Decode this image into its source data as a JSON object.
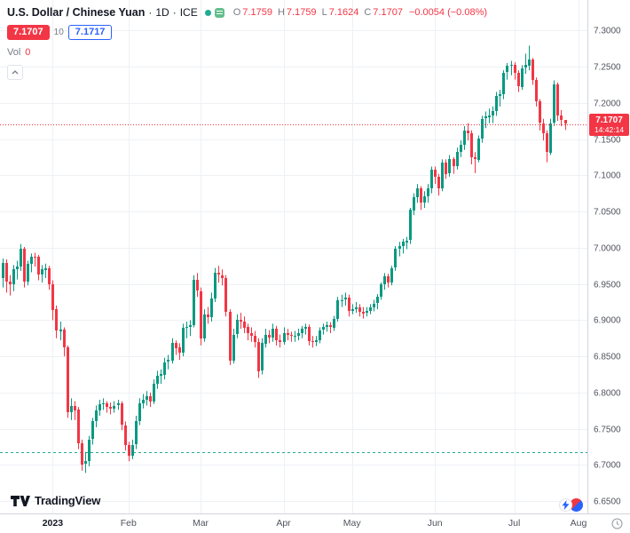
{
  "legend": {
    "title": "U.S. Dollar / Chinese Yuan",
    "separator": "·",
    "timeframe": "1D",
    "exchange": "ICE",
    "ohlc": {
      "o_label": "O",
      "o": "7.1759",
      "h_label": "H",
      "h": "7.1759",
      "l_label": "L",
      "l": "7.1624",
      "c_label": "C",
      "c": "7.1707",
      "change": "−0.0054 (−0.08%)"
    },
    "bid": "7.1707",
    "spread": "10",
    "ask": "7.1717",
    "vol_label": "Vol",
    "vol_value": "0"
  },
  "price_label": {
    "value": "7.1707",
    "countdown": "14:42:14"
  },
  "footer": {
    "logo_text": "TradingView"
  },
  "colors": {
    "up": "#089981",
    "down": "#f23645",
    "accent_blue": "#2962ff",
    "teal": "#22ab94",
    "grid": "#eef1f5"
  },
  "chart_data": {
    "type": "candlestick",
    "title": "U.S. Dollar / Chinese Yuan",
    "timeframe": "1D",
    "exchange": "ICE",
    "up_color": "#089981",
    "down_color": "#f23645",
    "price_range": {
      "top": 7.342,
      "bottom": 6.633
    },
    "y_ticks": [
      7.3,
      7.25,
      7.2,
      7.15,
      7.1,
      7.05,
      7.0,
      6.95,
      6.9,
      6.85,
      6.8,
      6.75,
      6.7,
      6.65
    ],
    "y_tick_labels": [
      "7.3000",
      "7.2500",
      "7.2000",
      "7.1500",
      "7.1000",
      "7.0500",
      "7.0000",
      "6.9500",
      "6.9000",
      "6.8500",
      "6.8000",
      "6.7500",
      "6.7000",
      "6.6500"
    ],
    "time_axis_labels": [
      "2023",
      "Feb",
      "Mar",
      "Apr",
      "May",
      "Jun",
      "Jul",
      "Aug"
    ],
    "last_price_line": {
      "value": 7.1707,
      "color": "#f23645"
    },
    "alert_line": {
      "value": 6.7175,
      "color": "#22ab94"
    },
    "candles": [
      [
        "2022-12-12",
        6.958,
        6.985,
        6.945,
        6.979
      ],
      [
        "2022-12-13",
        6.979,
        6.984,
        6.938,
        6.953
      ],
      [
        "2022-12-14",
        6.953,
        6.962,
        6.934,
        6.949
      ],
      [
        "2022-12-15",
        6.949,
        6.976,
        6.94,
        6.97
      ],
      [
        "2022-12-16",
        6.97,
        6.982,
        6.956,
        6.974
      ],
      [
        "2022-12-19",
        6.974,
        7.005,
        6.968,
        6.998
      ],
      [
        "2022-12-20",
        6.998,
        7.001,
        6.945,
        6.953
      ],
      [
        "2022-12-21",
        6.953,
        6.982,
        6.948,
        6.978
      ],
      [
        "2022-12-22",
        6.978,
        6.992,
        6.966,
        6.988
      ],
      [
        "2022-12-23",
        6.988,
        6.993,
        6.974,
        6.987
      ],
      [
        "2022-12-27",
        6.987,
        6.99,
        6.955,
        6.963
      ],
      [
        "2022-12-28",
        6.963,
        6.976,
        6.952,
        6.97
      ],
      [
        "2022-12-29",
        6.97,
        6.978,
        6.958,
        6.972
      ],
      [
        "2022-12-30",
        6.972,
        6.975,
        6.942,
        6.95
      ],
      [
        "2023-01-03",
        6.95,
        6.955,
        6.9,
        6.915
      ],
      [
        "2023-01-04",
        6.915,
        6.92,
        6.875,
        6.885
      ],
      [
        "2023-01-05",
        6.885,
        6.898,
        6.872,
        6.887
      ],
      [
        "2023-01-06",
        6.887,
        6.89,
        6.85,
        6.862
      ],
      [
        "2023-01-09",
        6.862,
        6.865,
        6.765,
        6.773
      ],
      [
        "2023-01-10",
        6.773,
        6.792,
        6.762,
        6.782
      ],
      [
        "2023-01-11",
        6.782,
        6.788,
        6.762,
        6.776
      ],
      [
        "2023-01-12",
        6.776,
        6.78,
        6.722,
        6.73
      ],
      [
        "2023-01-13",
        6.73,
        6.735,
        6.692,
        6.701
      ],
      [
        "2023-01-16",
        6.701,
        6.718,
        6.689,
        6.705
      ],
      [
        "2023-01-17",
        6.705,
        6.74,
        6.698,
        6.735
      ],
      [
        "2023-01-18",
        6.735,
        6.765,
        6.728,
        6.76
      ],
      [
        "2023-01-19",
        6.76,
        6.782,
        6.752,
        6.775
      ],
      [
        "2023-01-20",
        6.775,
        6.79,
        6.768,
        6.784
      ],
      [
        "2023-01-23",
        6.784,
        6.792,
        6.776,
        6.785
      ],
      [
        "2023-01-24",
        6.785,
        6.788,
        6.772,
        6.78
      ],
      [
        "2023-01-25",
        6.78,
        6.786,
        6.77,
        6.778
      ],
      [
        "2023-01-26",
        6.778,
        6.788,
        6.772,
        6.782
      ],
      [
        "2023-01-27",
        6.782,
        6.79,
        6.776,
        6.785
      ],
      [
        "2023-01-30",
        6.785,
        6.788,
        6.748,
        6.755
      ],
      [
        "2023-01-31",
        6.755,
        6.76,
        6.72,
        6.728
      ],
      [
        "2023-02-01",
        6.728,
        6.732,
        6.705,
        6.713
      ],
      [
        "2023-02-02",
        6.713,
        6.735,
        6.708,
        6.728
      ],
      [
        "2023-02-03",
        6.728,
        6.768,
        6.722,
        6.76
      ],
      [
        "2023-02-06",
        6.76,
        6.792,
        6.755,
        6.785
      ],
      [
        "2023-02-07",
        6.785,
        6.798,
        6.778,
        6.79
      ],
      [
        "2023-02-08",
        6.79,
        6.802,
        6.782,
        6.795
      ],
      [
        "2023-02-09",
        6.795,
        6.8,
        6.78,
        6.788
      ],
      [
        "2023-02-10",
        6.788,
        6.818,
        6.784,
        6.812
      ],
      [
        "2023-02-13",
        6.812,
        6.83,
        6.805,
        6.823
      ],
      [
        "2023-02-14",
        6.823,
        6.832,
        6.812,
        6.825
      ],
      [
        "2023-02-15",
        6.825,
        6.848,
        6.818,
        6.842
      ],
      [
        "2023-02-16",
        6.842,
        6.852,
        6.832,
        6.845
      ],
      [
        "2023-02-17",
        6.845,
        6.875,
        6.84,
        6.869
      ],
      [
        "2023-02-20",
        6.869,
        6.872,
        6.852,
        6.862
      ],
      [
        "2023-02-21",
        6.862,
        6.868,
        6.845,
        6.855
      ],
      [
        "2023-02-22",
        6.855,
        6.895,
        6.85,
        6.889
      ],
      [
        "2023-02-23",
        6.889,
        6.898,
        6.875,
        6.89
      ],
      [
        "2023-02-24",
        6.89,
        6.9,
        6.878,
        6.893
      ],
      [
        "2023-02-27",
        6.893,
        6.962,
        6.89,
        6.955
      ],
      [
        "2023-02-28",
        6.955,
        6.965,
        6.932,
        6.94
      ],
      [
        "2023-03-01",
        6.94,
        6.945,
        6.865,
        6.875
      ],
      [
        "2023-03-02",
        6.875,
        6.915,
        6.87,
        6.908
      ],
      [
        "2023-03-03",
        6.908,
        6.918,
        6.895,
        6.904
      ],
      [
        "2023-03-06",
        6.904,
        6.938,
        6.898,
        6.93
      ],
      [
        "2023-03-07",
        6.93,
        6.972,
        6.925,
        6.965
      ],
      [
        "2023-03-08",
        6.965,
        6.975,
        6.952,
        6.962
      ],
      [
        "2023-03-09",
        6.962,
        6.97,
        6.948,
        6.958
      ],
      [
        "2023-03-10",
        6.958,
        6.962,
        6.905,
        6.912
      ],
      [
        "2023-03-13",
        6.912,
        6.915,
        6.838,
        6.845
      ],
      [
        "2023-03-14",
        6.845,
        6.888,
        6.84,
        6.88
      ],
      [
        "2023-03-15",
        6.88,
        6.908,
        6.875,
        6.9
      ],
      [
        "2023-03-16",
        6.9,
        6.91,
        6.888,
        6.898
      ],
      [
        "2023-03-17",
        6.898,
        6.905,
        6.882,
        6.89
      ],
      [
        "2023-03-20",
        6.89,
        6.895,
        6.872,
        6.882
      ],
      [
        "2023-03-21",
        6.882,
        6.89,
        6.87,
        6.878
      ],
      [
        "2023-03-22",
        6.878,
        6.885,
        6.862,
        6.87
      ],
      [
        "2023-03-23",
        6.87,
        6.875,
        6.82,
        6.83
      ],
      [
        "2023-03-24",
        6.83,
        6.875,
        6.825,
        6.868
      ],
      [
        "2023-03-27",
        6.868,
        6.888,
        6.862,
        6.88
      ],
      [
        "2023-03-28",
        6.88,
        6.886,
        6.868,
        6.876
      ],
      [
        "2023-03-29",
        6.876,
        6.895,
        6.87,
        6.888
      ],
      [
        "2023-03-30",
        6.888,
        6.892,
        6.865,
        6.872
      ],
      [
        "2023-03-31",
        6.872,
        6.88,
        6.862,
        6.87
      ],
      [
        "2023-04-03",
        6.87,
        6.89,
        6.866,
        6.882
      ],
      [
        "2023-04-04",
        6.882,
        6.888,
        6.872,
        6.879
      ],
      [
        "2023-04-05",
        6.879,
        6.884,
        6.87,
        6.878
      ],
      [
        "2023-04-06",
        6.878,
        6.885,
        6.87,
        6.878
      ],
      [
        "2023-04-10",
        6.878,
        6.888,
        6.872,
        6.882
      ],
      [
        "2023-04-11",
        6.882,
        6.892,
        6.875,
        6.888
      ],
      [
        "2023-04-12",
        6.888,
        6.895,
        6.88,
        6.891
      ],
      [
        "2023-04-13",
        6.891,
        6.894,
        6.865,
        6.871
      ],
      [
        "2023-04-14",
        6.871,
        6.878,
        6.862,
        6.87
      ],
      [
        "2023-04-17",
        6.87,
        6.878,
        6.864,
        6.872
      ],
      [
        "2023-04-18",
        6.872,
        6.89,
        6.868,
        6.886
      ],
      [
        "2023-04-19",
        6.886,
        6.895,
        6.88,
        6.89
      ],
      [
        "2023-04-20",
        6.89,
        6.898,
        6.884,
        6.893
      ],
      [
        "2023-04-21",
        6.893,
        6.897,
        6.882,
        6.89
      ],
      [
        "2023-04-24",
        6.89,
        6.906,
        6.885,
        6.902
      ],
      [
        "2023-04-25",
        6.902,
        6.932,
        6.898,
        6.928
      ],
      [
        "2023-04-26",
        6.928,
        6.935,
        6.918,
        6.928
      ],
      [
        "2023-04-27",
        6.928,
        6.938,
        6.92,
        6.931
      ],
      [
        "2023-04-28",
        6.931,
        6.935,
        6.905,
        6.912
      ],
      [
        "2023-05-01",
        6.912,
        6.922,
        6.908,
        6.915
      ],
      [
        "2023-05-02",
        6.915,
        6.925,
        6.91,
        6.918
      ],
      [
        "2023-05-03",
        6.918,
        6.922,
        6.905,
        6.912
      ],
      [
        "2023-05-04",
        6.912,
        6.918,
        6.902,
        6.91
      ],
      [
        "2023-05-05",
        6.91,
        6.918,
        6.905,
        6.913
      ],
      [
        "2023-05-08",
        6.913,
        6.922,
        6.908,
        6.918
      ],
      [
        "2023-05-09",
        6.918,
        6.928,
        6.912,
        6.923
      ],
      [
        "2023-05-10",
        6.923,
        6.936,
        6.915,
        6.932
      ],
      [
        "2023-05-11",
        6.932,
        6.952,
        6.928,
        6.949
      ],
      [
        "2023-05-12",
        6.949,
        6.965,
        6.942,
        6.96
      ],
      [
        "2023-05-15",
        6.96,
        6.964,
        6.945,
        6.952
      ],
      [
        "2023-05-16",
        6.952,
        6.975,
        6.948,
        6.972
      ],
      [
        "2023-05-17",
        6.972,
        7.002,
        6.968,
        6.998
      ],
      [
        "2023-05-18",
        6.998,
        7.008,
        6.988,
        7.002
      ],
      [
        "2023-05-19",
        7.002,
        7.012,
        6.992,
        7.008
      ],
      [
        "2023-05-22",
        7.008,
        7.015,
        6.998,
        7.01
      ],
      [
        "2023-05-23",
        7.01,
        7.055,
        7.005,
        7.052
      ],
      [
        "2023-05-24",
        7.052,
        7.075,
        7.045,
        7.07
      ],
      [
        "2023-05-25",
        7.07,
        7.088,
        7.062,
        7.082
      ],
      [
        "2023-05-26",
        7.082,
        7.085,
        7.052,
        7.062
      ],
      [
        "2023-05-29",
        7.062,
        7.078,
        7.055,
        7.071
      ],
      [
        "2023-05-30",
        7.071,
        7.088,
        7.062,
        7.082
      ],
      [
        "2023-05-31",
        7.082,
        7.112,
        7.075,
        7.108
      ],
      [
        "2023-06-01",
        7.108,
        7.112,
        7.088,
        7.098
      ],
      [
        "2023-06-02",
        7.098,
        7.102,
        7.072,
        7.082
      ],
      [
        "2023-06-05",
        7.082,
        7.122,
        7.078,
        7.118
      ],
      [
        "2023-06-06",
        7.118,
        7.122,
        7.095,
        7.102
      ],
      [
        "2023-06-07",
        7.102,
        7.128,
        7.098,
        7.122
      ],
      [
        "2023-06-08",
        7.122,
        7.125,
        7.102,
        7.112
      ],
      [
        "2023-06-09",
        7.112,
        7.138,
        7.108,
        7.132
      ],
      [
        "2023-06-12",
        7.132,
        7.148,
        7.125,
        7.142
      ],
      [
        "2023-06-13",
        7.142,
        7.168,
        7.135,
        7.162
      ],
      [
        "2023-06-14",
        7.162,
        7.172,
        7.148,
        7.158
      ],
      [
        "2023-06-15",
        7.158,
        7.162,
        7.115,
        7.125
      ],
      [
        "2023-06-16",
        7.125,
        7.132,
        7.103,
        7.122
      ],
      [
        "2023-06-19",
        7.122,
        7.155,
        7.118,
        7.151
      ],
      [
        "2023-06-20",
        7.151,
        7.182,
        7.145,
        7.178
      ],
      [
        "2023-06-21",
        7.178,
        7.188,
        7.165,
        7.181
      ],
      [
        "2023-06-22",
        7.181,
        7.192,
        7.172,
        7.183
      ],
      [
        "2023-06-23",
        7.183,
        7.195,
        7.172,
        7.189
      ],
      [
        "2023-06-26",
        7.189,
        7.215,
        7.182,
        7.21
      ],
      [
        "2023-06-27",
        7.21,
        7.218,
        7.195,
        7.212
      ],
      [
        "2023-06-28",
        7.212,
        7.245,
        7.205,
        7.242
      ],
      [
        "2023-06-29",
        7.242,
        7.255,
        7.232,
        7.251
      ],
      [
        "2023-06-30",
        7.251,
        7.258,
        7.238,
        7.252
      ],
      [
        "2023-07-03",
        7.252,
        7.256,
        7.232,
        7.241
      ],
      [
        "2023-07-04",
        7.241,
        7.245,
        7.215,
        7.222
      ],
      [
        "2023-07-05",
        7.222,
        7.252,
        7.218,
        7.248
      ],
      [
        "2023-07-06",
        7.248,
        7.268,
        7.24,
        7.252
      ],
      [
        "2023-07-07",
        7.252,
        7.279,
        7.245,
        7.26
      ],
      [
        "2023-07-10",
        7.26,
        7.262,
        7.225,
        7.232
      ],
      [
        "2023-07-11",
        7.232,
        7.235,
        7.195,
        7.202
      ],
      [
        "2023-07-12",
        7.202,
        7.205,
        7.162,
        7.172
      ],
      [
        "2023-07-13",
        7.172,
        7.178,
        7.148,
        7.158
      ],
      [
        "2023-07-14",
        7.158,
        7.162,
        7.118,
        7.132
      ],
      [
        "2023-07-17",
        7.132,
        7.178,
        7.128,
        7.172
      ],
      [
        "2023-07-18",
        7.172,
        7.231,
        7.168,
        7.225
      ],
      [
        "2023-07-19",
        7.225,
        7.228,
        7.175,
        7.182
      ],
      [
        "2023-07-20",
        7.182,
        7.19,
        7.168,
        7.176
      ],
      [
        "2023-07-21",
        7.1759,
        7.1759,
        7.1624,
        7.1707
      ]
    ]
  }
}
